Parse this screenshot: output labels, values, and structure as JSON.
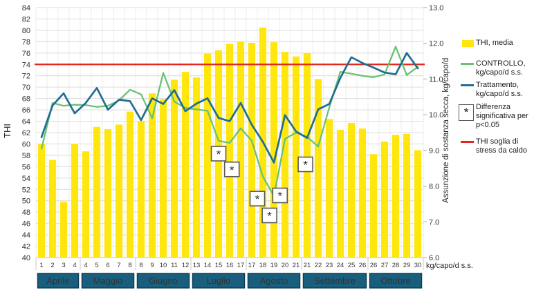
{
  "chart_data": {
    "type": "combo bar+line",
    "categories": [
      "1",
      "2",
      "3",
      "4",
      "4",
      "5",
      "6",
      "7",
      "8",
      "8",
      "9",
      "10",
      "11",
      "12",
      "13",
      "14",
      "15",
      "16",
      "17",
      "17",
      "18",
      "19",
      "20",
      "21",
      "21",
      "22",
      "23",
      "24",
      "25",
      "26",
      "26",
      "27",
      "28",
      "29",
      "30"
    ],
    "months": [
      {
        "label": "Aprile",
        "span": 4
      },
      {
        "label": "Maggio",
        "span": 5
      },
      {
        "label": "Giugno",
        "span": 5
      },
      {
        "label": "Luglio",
        "span": 5
      },
      {
        "label": "Agosto",
        "span": 5
      },
      {
        "label": "Settembre",
        "span": 6
      },
      {
        "label": "Ottobre",
        "span": 5
      }
    ],
    "bar_series": {
      "name": "THI, media",
      "axis": "left",
      "values": [
        60.0,
        57.2,
        49.8,
        60.0,
        58.7,
        63.0,
        62.6,
        63.4,
        65.7,
        64.0,
        68.9,
        67.9,
        71.3,
        72.7,
        71.7,
        75.9,
        76.5,
        77.6,
        78.0,
        77.8,
        80.5,
        77.9,
        76.2,
        75.4,
        76.0,
        71.4,
        64.4,
        62.5,
        63.7,
        62.7,
        58.2,
        60.4,
        61.6,
        61.8,
        58.9
      ]
    },
    "line_series": [
      {
        "name": "CONTROLLO, kg/capo/d s.s.",
        "axis": "right",
        "values": [
          9.05,
          10.33,
          10.25,
          10.28,
          10.27,
          10.22,
          10.25,
          10.4,
          10.7,
          10.57,
          9.9,
          11.17,
          10.37,
          10.19,
          10.15,
          10.11,
          9.27,
          9.21,
          9.62,
          9.27,
          8.27,
          7.72,
          9.32,
          9.5,
          9.38,
          9.11,
          10.2,
          11.2,
          11.15,
          11.09,
          11.05,
          11.13,
          11.91,
          11.11,
          11.34
        ]
      },
      {
        "name": "Trattamento, kg/capo/d s.s.",
        "axis": "right",
        "values": [
          9.37,
          10.26,
          10.6,
          10.04,
          10.33,
          10.75,
          10.14,
          10.42,
          10.38,
          9.85,
          10.46,
          10.3,
          10.69,
          10.1,
          10.31,
          10.46,
          9.91,
          9.82,
          10.33,
          9.72,
          9.24,
          8.66,
          9.99,
          9.53,
          9.35,
          10.15,
          10.3,
          11.03,
          11.61,
          11.45,
          11.32,
          11.18,
          11.13,
          11.73,
          11.3
        ]
      }
    ],
    "threshold_line": {
      "name": "THI soglia di stress da caldo",
      "axis": "left",
      "value": 74
    },
    "significance_markers": [
      {
        "slot": 17.0,
        "kg": 8.91
      },
      {
        "slot": 18.2,
        "kg": 8.47
      },
      {
        "slot": 20.5,
        "kg": 7.65
      },
      {
        "slot": 21.6,
        "kg": 7.18
      },
      {
        "slot": 22.55,
        "kg": 7.74
      },
      {
        "slot": 24.85,
        "kg": 8.61
      }
    ],
    "left_axis": {
      "title": "THI",
      "min": 40,
      "max": 84,
      "step": 2
    },
    "right_axis": {
      "title": "Assunzione di sostanza secca, kg/capo/d",
      "min": 6.0,
      "max": 13.0,
      "step": 1.0,
      "unit_label": "kg/capo/d s.s."
    },
    "grid": true,
    "legend_position": "right"
  },
  "legend": {
    "thi_label": "THI, media",
    "controllo_line1": "CONTROLLO,",
    "controllo_line2": "kg/capo/d s.s.",
    "trattamento_line1": "Trattamento,",
    "trattamento_line2": "kg/capo/d s.s.",
    "star": "*",
    "sig_line1": "Differenza",
    "sig_line2": "significativa per",
    "sig_line3": "p<0.05",
    "thr_line1": "THI soglia di",
    "thr_line2": "stress da caldo"
  },
  "colors": {
    "bar": "#FFE60E",
    "controllo": "#6CC173",
    "trattamento": "#1F6D92",
    "threshold": "#E5261C",
    "month_box": "#1A5E7D",
    "month_box_border": "#0F3D52",
    "grid_h": "#DCDCDC",
    "grid_v": "#EDEDED",
    "axis_text": "#333333"
  }
}
